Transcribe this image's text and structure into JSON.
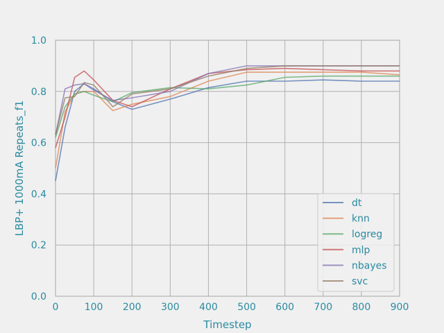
{
  "chart_data": {
    "type": "line",
    "xlabel": "Timestep",
    "ylabel": "LBP+ 1000mA Repeats_f1",
    "xlim": [
      0,
      900
    ],
    "ylim": [
      0.0,
      1.0
    ],
    "xticks": [
      0,
      100,
      200,
      300,
      400,
      500,
      600,
      700,
      800,
      900
    ],
    "yticks": [
      0.0,
      0.2,
      0.4,
      0.6,
      0.8,
      1.0
    ],
    "grid": true,
    "legend_position": "lower-right",
    "series": [
      {
        "name": "dt",
        "color": "#4c72b0",
        "x": [
          0,
          25,
          50,
          75,
          100,
          150,
          200,
          300,
          400,
          500,
          600,
          700,
          800,
          900
        ],
        "y": [
          0.45,
          0.66,
          0.8,
          0.83,
          0.81,
          0.76,
          0.73,
          0.77,
          0.815,
          0.84,
          0.84,
          0.845,
          0.84,
          0.84
        ]
      },
      {
        "name": "knn",
        "color": "#dd8452",
        "x": [
          0,
          25,
          50,
          75,
          100,
          150,
          200,
          300,
          400,
          500,
          600,
          700,
          800,
          900
        ],
        "y": [
          0.5,
          0.72,
          0.79,
          0.8,
          0.8,
          0.725,
          0.75,
          0.78,
          0.84,
          0.875,
          0.875,
          0.875,
          0.875,
          0.865
        ]
      },
      {
        "name": "logreg",
        "color": "#55a868",
        "x": [
          0,
          25,
          50,
          75,
          100,
          150,
          200,
          300,
          400,
          500,
          600,
          700,
          800,
          900
        ],
        "y": [
          0.62,
          0.74,
          0.79,
          0.8,
          0.785,
          0.76,
          0.795,
          0.815,
          0.81,
          0.825,
          0.855,
          0.86,
          0.86,
          0.86
        ]
      },
      {
        "name": "mlp",
        "color": "#c44e52",
        "x": [
          0,
          25,
          50,
          75,
          100,
          150,
          200,
          300,
          400,
          500,
          600,
          700,
          800,
          900
        ],
        "y": [
          0.58,
          0.7,
          0.855,
          0.88,
          0.845,
          0.765,
          0.74,
          0.81,
          0.87,
          0.885,
          0.89,
          0.885,
          0.88,
          0.88
        ]
      },
      {
        "name": "nbayes",
        "color": "#8172b3",
        "x": [
          0,
          25,
          50,
          75,
          100,
          150,
          200,
          300,
          400,
          500,
          600,
          700,
          800,
          900
        ],
        "y": [
          0.63,
          0.81,
          0.825,
          0.83,
          0.805,
          0.765,
          0.775,
          0.8,
          0.87,
          0.9,
          0.9,
          0.9,
          0.9,
          0.9
        ]
      },
      {
        "name": "svc",
        "color": "#937860",
        "x": [
          0,
          25,
          50,
          75,
          100,
          150,
          200,
          300,
          400,
          500,
          600,
          700,
          800,
          900
        ],
        "y": [
          0.63,
          0.775,
          0.78,
          0.835,
          0.825,
          0.74,
          0.79,
          0.81,
          0.86,
          0.89,
          0.9,
          0.9,
          0.9,
          0.9
        ]
      }
    ]
  }
}
